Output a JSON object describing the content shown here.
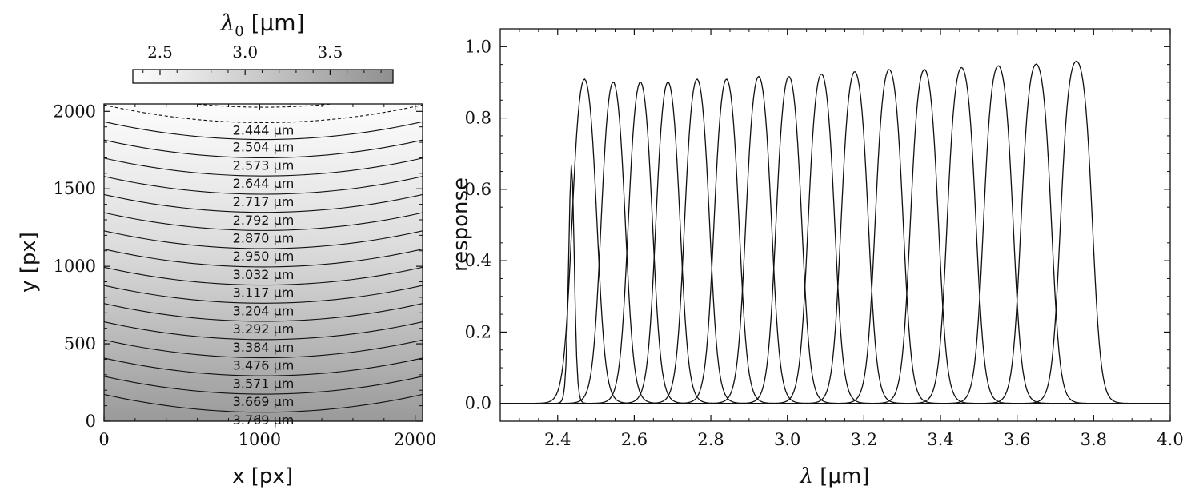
{
  "chart_data": [
    {
      "type": "heatmap",
      "colorbar": {
        "label": "λ₀ [μm]",
        "label_symbol": "λ",
        "label_sub": "0",
        "label_unit": " [μm]",
        "ticks": [
          "2.5",
          "3.0",
          "3.5"
        ],
        "tick_values": [
          2.5,
          3.0,
          3.5
        ],
        "range": [
          2.34,
          3.87
        ],
        "placement": "top",
        "colors": [
          "#ffffff",
          "#8f8f8f"
        ]
      },
      "xlabel": "x [px]",
      "ylabel": "y [px]",
      "xlim": [
        0,
        2048
      ],
      "ylim": [
        0,
        2048
      ],
      "xticks": [
        "0",
        "1000",
        "2000"
      ],
      "xtick_values": [
        0,
        1000,
        2000
      ],
      "yticks": [
        "0",
        "500",
        "1000",
        "1500",
        "2000"
      ],
      "ytick_values": [
        0,
        500,
        1000,
        1500,
        2000
      ],
      "contour_sag": 115,
      "contours": [
        {
          "label": "2.444 μm",
          "wavelength": 2.444,
          "y_center": 1927,
          "style": "dashed"
        },
        {
          "label": "2.504 μm",
          "wavelength": 2.504,
          "y_center": 1818,
          "style": "solid"
        },
        {
          "label": "2.573 μm",
          "wavelength": 2.573,
          "y_center": 1700,
          "style": "solid"
        },
        {
          "label": "2.644 μm",
          "wavelength": 2.644,
          "y_center": 1583,
          "style": "solid"
        },
        {
          "label": "2.717 μm",
          "wavelength": 2.717,
          "y_center": 1465,
          "style": "solid"
        },
        {
          "label": "2.792 μm",
          "wavelength": 2.792,
          "y_center": 1348,
          "style": "solid"
        },
        {
          "label": "2.870 μm",
          "wavelength": 2.87,
          "y_center": 1231,
          "style": "solid"
        },
        {
          "label": "2.950 μm",
          "wavelength": 2.95,
          "y_center": 1114,
          "style": "solid"
        },
        {
          "label": "3.032 μm",
          "wavelength": 3.032,
          "y_center": 996,
          "style": "solid"
        },
        {
          "label": "3.117 μm",
          "wavelength": 3.117,
          "y_center": 879,
          "style": "solid"
        },
        {
          "label": "3.204 μm",
          "wavelength": 3.204,
          "y_center": 762,
          "style": "solid"
        },
        {
          "label": "3.292 μm",
          "wavelength": 3.292,
          "y_center": 645,
          "style": "solid"
        },
        {
          "label": "3.384 μm",
          "wavelength": 3.384,
          "y_center": 527,
          "style": "solid"
        },
        {
          "label": "3.476 μm",
          "wavelength": 3.476,
          "y_center": 410,
          "style": "solid"
        },
        {
          "label": "3.571 μm",
          "wavelength": 3.571,
          "y_center": 293,
          "style": "solid"
        },
        {
          "label": "3.669 μm",
          "wavelength": 3.669,
          "y_center": 175,
          "style": "solid"
        },
        {
          "label": "3.769 μm",
          "wavelength": 3.769,
          "y_center": 58,
          "style": "solid"
        }
      ]
    },
    {
      "type": "line",
      "xlabel": "λ [μm]",
      "xlabel_symbol": "λ",
      "xlabel_unit": " [μm]",
      "ylabel": "response",
      "xlim": [
        2.25,
        4.0
      ],
      "ylim": [
        -0.05,
        1.05
      ],
      "xticks": [
        "2.4",
        "2.6",
        "2.8",
        "3.0",
        "3.2",
        "3.4",
        "3.6",
        "3.8",
        "4.0"
      ],
      "xtick_values": [
        2.4,
        2.6,
        2.8,
        3.0,
        3.2,
        3.4,
        3.6,
        3.8,
        4.0
      ],
      "yticks": [
        "0.0",
        "0.2",
        "0.4",
        "0.6",
        "0.8",
        "1.0"
      ],
      "ytick_values": [
        0.0,
        0.2,
        0.4,
        0.6,
        0.8,
        1.0
      ],
      "grid": false,
      "series_color": "#111111",
      "series": [
        {
          "center": 2.436,
          "fwhm": 0.012,
          "edge": 0.004
        },
        {
          "center": 2.47,
          "fwhm": 0.066,
          "edge": 0.011
        },
        {
          "center": 2.545,
          "fwhm": 0.064,
          "edge": 0.011
        },
        {
          "center": 2.616,
          "fwhm": 0.064,
          "edge": 0.011
        },
        {
          "center": 2.688,
          "fwhm": 0.064,
          "edge": 0.011
        },
        {
          "center": 2.764,
          "fwhm": 0.066,
          "edge": 0.011
        },
        {
          "center": 2.841,
          "fwhm": 0.066,
          "edge": 0.011
        },
        {
          "center": 2.925,
          "fwhm": 0.068,
          "edge": 0.011
        },
        {
          "center": 3.004,
          "fwhm": 0.068,
          "edge": 0.011
        },
        {
          "center": 3.089,
          "fwhm": 0.07,
          "edge": 0.011
        },
        {
          "center": 3.176,
          "fwhm": 0.072,
          "edge": 0.011
        },
        {
          "center": 3.266,
          "fwhm": 0.074,
          "edge": 0.011
        },
        {
          "center": 3.358,
          "fwhm": 0.074,
          "edge": 0.011
        },
        {
          "center": 3.455,
          "fwhm": 0.076,
          "edge": 0.011
        },
        {
          "center": 3.551,
          "fwhm": 0.078,
          "edge": 0.011
        },
        {
          "center": 3.65,
          "fwhm": 0.08,
          "edge": 0.011
        },
        {
          "center": 3.755,
          "fwhm": 0.084,
          "edge": 0.011
        }
      ]
    }
  ]
}
